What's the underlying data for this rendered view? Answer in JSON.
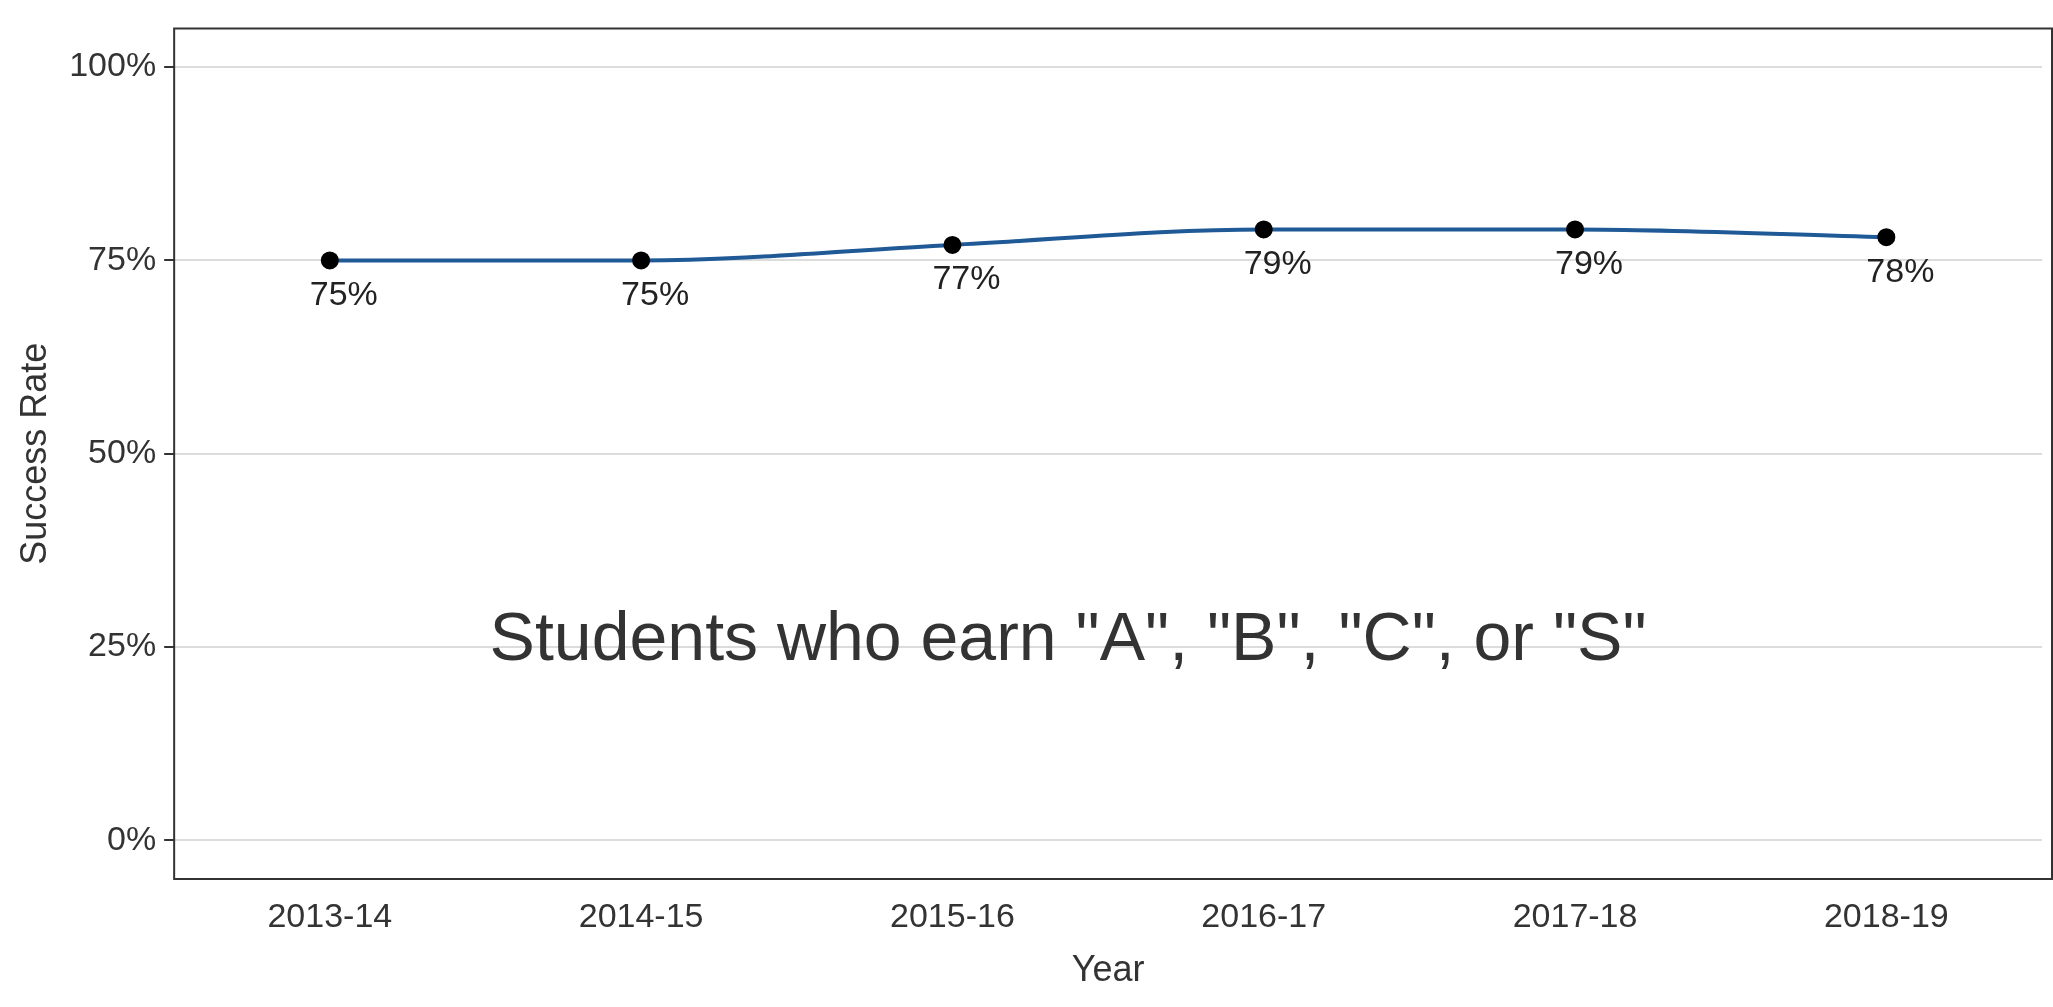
{
  "chart_data": {
    "type": "line",
    "xlabel": "Year",
    "ylabel": "Success Rate",
    "categories": [
      "2013-14",
      "2014-15",
      "2015-16",
      "2016-17",
      "2017-18",
      "2018-19"
    ],
    "series": [
      {
        "color": "#1f5a96",
        "values": [
          75,
          75,
          77,
          79,
          79,
          78
        ],
        "value_labels": [
          "75%",
          "75%",
          "77%",
          "79%",
          "79%",
          "78%"
        ]
      }
    ],
    "ylim": [
      -5,
      105
    ],
    "yticks": [
      {
        "value": 0,
        "label": "0%"
      },
      {
        "value": 25,
        "label": "25%"
      },
      {
        "value": 50,
        "label": "50%"
      },
      {
        "value": 75,
        "label": "75%"
      },
      {
        "value": 100,
        "label": "100%"
      }
    ],
    "grid": "y",
    "legend": false,
    "marker": "circle",
    "line_style": "solid",
    "annotations": [
      "Students who earn \"A\", \"B\", \"C\", or \"S\""
    ]
  }
}
